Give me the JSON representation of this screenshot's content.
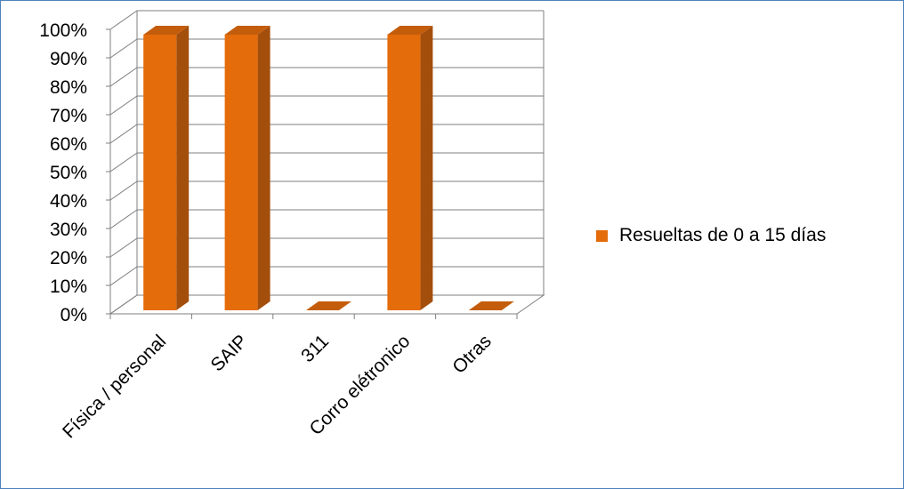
{
  "chart_data": {
    "type": "bar",
    "style": "3d-column",
    "categories": [
      "Física / personal",
      "SAIP",
      "311",
      "Corro elétronico",
      "Otras"
    ],
    "series": [
      {
        "name": "Resueltas de 0 a 15 días",
        "values": [
          100,
          100,
          0,
          100,
          0
        ]
      }
    ],
    "ylim": [
      0,
      100
    ],
    "yticks": [
      "0%",
      "10%",
      "20%",
      "30%",
      "40%",
      "50%",
      "60%",
      "70%",
      "80%",
      "90%",
      "100%"
    ],
    "grid": true,
    "legend_position": "right",
    "colors": {
      "bar_front": "#e46c0a",
      "bar_side": "#a44e0c",
      "bar_top": "#c45d0b",
      "grid": "#7f7f7f",
      "border": "#4f81bd"
    }
  }
}
